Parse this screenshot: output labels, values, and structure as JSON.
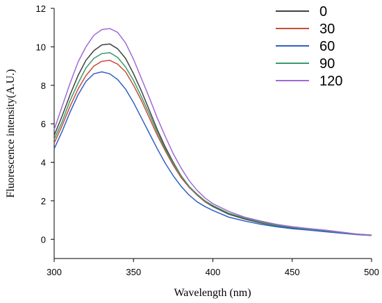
{
  "chart_data": {
    "type": "line",
    "title": "",
    "xlabel": "Wavelength (nm)",
    "ylabel": "Fluorescence intensity(A.U.)",
    "xlim": [
      300,
      500
    ],
    "ylim": [
      -1,
      12
    ],
    "x_ticks": [
      300,
      350,
      400,
      450,
      500
    ],
    "y_ticks": [
      0,
      2,
      4,
      6,
      8,
      10,
      12
    ],
    "grid": false,
    "legend_position": "top-right",
    "x": [
      300,
      305,
      310,
      315,
      320,
      325,
      330,
      335,
      340,
      345,
      350,
      355,
      360,
      365,
      370,
      375,
      380,
      385,
      390,
      395,
      400,
      410,
      420,
      430,
      440,
      450,
      460,
      470,
      480,
      490,
      500
    ],
    "series": [
      {
        "name": "0",
        "color": "#404040",
        "values": [
          5.4,
          6.4,
          7.5,
          8.5,
          9.3,
          9.8,
          10.1,
          10.15,
          9.9,
          9.4,
          8.6,
          7.7,
          6.7,
          5.7,
          4.8,
          4.0,
          3.3,
          2.75,
          2.3,
          1.95,
          1.7,
          1.3,
          1.05,
          0.85,
          0.7,
          0.6,
          0.52,
          0.45,
          0.35,
          0.25,
          0.2
        ]
      },
      {
        "name": "30",
        "color": "#cc4a3a",
        "values": [
          5.0,
          5.9,
          6.9,
          7.8,
          8.5,
          9.0,
          9.25,
          9.3,
          9.1,
          8.7,
          8.0,
          7.2,
          6.3,
          5.4,
          4.6,
          3.85,
          3.2,
          2.7,
          2.3,
          1.95,
          1.75,
          1.35,
          1.1,
          0.9,
          0.75,
          0.65,
          0.55,
          0.48,
          0.38,
          0.28,
          0.22
        ]
      },
      {
        "name": "60",
        "color": "#2f5fc4",
        "values": [
          4.7,
          5.6,
          6.6,
          7.5,
          8.2,
          8.6,
          8.7,
          8.6,
          8.3,
          7.8,
          7.1,
          6.3,
          5.5,
          4.7,
          3.95,
          3.3,
          2.75,
          2.3,
          1.95,
          1.7,
          1.5,
          1.15,
          0.95,
          0.78,
          0.65,
          0.55,
          0.48,
          0.4,
          0.32,
          0.25,
          0.2
        ]
      },
      {
        "name": "90",
        "color": "#3a9a6a",
        "values": [
          5.2,
          6.1,
          7.2,
          8.1,
          8.9,
          9.4,
          9.65,
          9.7,
          9.45,
          8.95,
          8.25,
          7.4,
          6.5,
          5.55,
          4.7,
          3.95,
          3.3,
          2.75,
          2.35,
          2.0,
          1.75,
          1.35,
          1.1,
          0.88,
          0.72,
          0.62,
          0.53,
          0.46,
          0.36,
          0.27,
          0.21
        ]
      },
      {
        "name": "120",
        "color": "#a06ad6",
        "values": [
          5.7,
          6.9,
          8.1,
          9.2,
          10.0,
          10.6,
          10.9,
          10.95,
          10.75,
          10.2,
          9.35,
          8.35,
          7.35,
          6.3,
          5.35,
          4.45,
          3.7,
          3.05,
          2.55,
          2.15,
          1.85,
          1.45,
          1.15,
          0.95,
          0.78,
          0.65,
          0.56,
          0.48,
          0.38,
          0.28,
          0.22
        ]
      }
    ]
  }
}
